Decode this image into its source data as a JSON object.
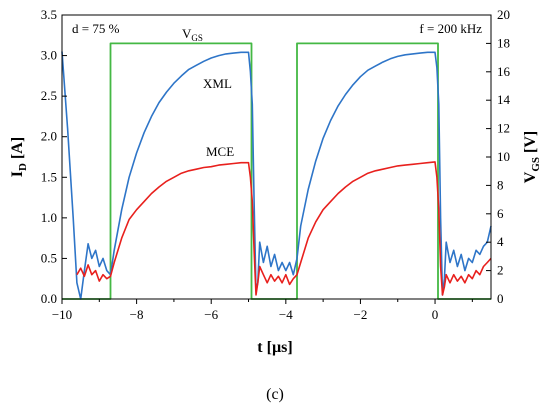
{
  "chart_data": {
    "type": "line",
    "caption": "(c)",
    "xlabel": "t [µs]",
    "ylabel_left_main": "I",
    "ylabel_left_sub": "D",
    "ylabel_left_unit": " [A]",
    "ylabel_right_main": "V",
    "ylabel_right_sub": "GS",
    "ylabel_right_unit": " [V]",
    "xlim": [
      -10,
      1.5
    ],
    "ylim_left": [
      0,
      3.5
    ],
    "ylim_right": [
      0,
      20
    ],
    "x_ticks": [
      -10,
      -8,
      -6,
      -4,
      -2,
      0
    ],
    "x_tick_labels": [
      "−10",
      "−8",
      "−6",
      "−4",
      "−2",
      "0"
    ],
    "y_left_ticks": [
      0,
      0.5,
      1,
      1.5,
      2,
      2.5,
      3,
      3.5
    ],
    "y_left_tick_labels": [
      "0.0",
      "0.5",
      "1.0",
      "1.5",
      "2.0",
      "2.5",
      "3.0",
      "3.5"
    ],
    "y_right_ticks": [
      0,
      2,
      4,
      6,
      8,
      10,
      12,
      14,
      16,
      18,
      20
    ],
    "y_right_tick_labels": [
      "0",
      "2",
      "4",
      "6",
      "8",
      "10",
      "12",
      "14",
      "16",
      "18",
      "20"
    ],
    "grid": false,
    "annotations": {
      "duty": "d = 75 %",
      "freq": "f = 200 kHz",
      "vgs_main": "V",
      "vgs_sub": "GS",
      "xml": "XML",
      "mce": "MCE"
    },
    "colors": {
      "XML": "#2e75c8",
      "MCE": "#e8201d",
      "VGS": "#44b844"
    },
    "series": [
      {
        "name": "XML",
        "axis": "left",
        "x": [
          -10,
          -9.85,
          -9.7,
          -9.6,
          -9.5,
          -9.4,
          -9.3,
          -9.2,
          -9.1,
          -9.0,
          -8.9,
          -8.8,
          -8.7,
          -8.6,
          -8.4,
          -8.2,
          -8.0,
          -7.8,
          -7.6,
          -7.4,
          -7.2,
          -7.0,
          -6.8,
          -6.6,
          -6.4,
          -6.2,
          -6.0,
          -5.8,
          -5.6,
          -5.4,
          -5.2,
          -5.0,
          -4.95,
          -4.9,
          -4.85,
          -4.8,
          -4.75,
          -4.7,
          -4.6,
          -4.5,
          -4.4,
          -4.3,
          -4.2,
          -4.1,
          -4.0,
          -3.9,
          -3.8,
          -3.7,
          -3.6,
          -3.4,
          -3.2,
          -3.0,
          -2.8,
          -2.6,
          -2.4,
          -2.2,
          -2.0,
          -1.8,
          -1.6,
          -1.4,
          -1.2,
          -1.0,
          -0.8,
          -0.6,
          -0.4,
          -0.2,
          0.0,
          0.05,
          0.1,
          0.15,
          0.2,
          0.25,
          0.3,
          0.4,
          0.5,
          0.6,
          0.7,
          0.8,
          0.9,
          1.0,
          1.1,
          1.2,
          1.3,
          1.4,
          1.5
        ],
        "y": [
          3.05,
          2.1,
          1.0,
          0.2,
          0.0,
          0.35,
          0.68,
          0.5,
          0.6,
          0.4,
          0.5,
          0.35,
          0.3,
          0.6,
          1.1,
          1.5,
          1.8,
          2.05,
          2.25,
          2.42,
          2.55,
          2.66,
          2.75,
          2.83,
          2.88,
          2.93,
          2.97,
          3.0,
          3.02,
          3.03,
          3.04,
          3.04,
          2.8,
          2.4,
          1.2,
          0.1,
          0.2,
          0.7,
          0.45,
          0.65,
          0.4,
          0.55,
          0.35,
          0.45,
          0.35,
          0.45,
          0.3,
          0.5,
          0.9,
          1.35,
          1.7,
          1.98,
          2.2,
          2.38,
          2.52,
          2.64,
          2.74,
          2.82,
          2.87,
          2.92,
          2.96,
          2.99,
          3.01,
          3.02,
          3.03,
          3.04,
          3.04,
          2.85,
          2.4,
          1.0,
          0.05,
          0.25,
          0.7,
          0.45,
          0.6,
          0.4,
          0.55,
          0.35,
          0.5,
          0.45,
          0.6,
          0.55,
          0.65,
          0.7,
          0.9
        ]
      },
      {
        "name": "MCE",
        "axis": "left",
        "x": [
          -9.6,
          -9.5,
          -9.4,
          -9.3,
          -9.2,
          -9.1,
          -9.0,
          -8.9,
          -8.8,
          -8.7,
          -8.6,
          -8.4,
          -8.2,
          -8.0,
          -7.8,
          -7.6,
          -7.4,
          -7.2,
          -7.0,
          -6.8,
          -6.6,
          -6.4,
          -6.2,
          -6.0,
          -5.8,
          -5.6,
          -5.4,
          -5.2,
          -5.0,
          -4.95,
          -4.9,
          -4.85,
          -4.8,
          -4.75,
          -4.7,
          -4.6,
          -4.5,
          -4.4,
          -4.3,
          -4.2,
          -4.1,
          -4.0,
          -3.9,
          -3.8,
          -3.7,
          -3.6,
          -3.4,
          -3.2,
          -3.0,
          -2.8,
          -2.6,
          -2.4,
          -2.2,
          -2.0,
          -1.8,
          -1.6,
          -1.4,
          -1.2,
          -1.0,
          -0.8,
          -0.6,
          -0.4,
          -0.2,
          0.0,
          0.05,
          0.1,
          0.15,
          0.2,
          0.25,
          0.3,
          0.4,
          0.5,
          0.6,
          0.7,
          0.8,
          0.9,
          1.0,
          1.1,
          1.2,
          1.3,
          1.4,
          1.5
        ],
        "y": [
          0.3,
          0.38,
          0.28,
          0.42,
          0.3,
          0.35,
          0.22,
          0.3,
          0.25,
          0.28,
          0.45,
          0.75,
          0.98,
          1.1,
          1.2,
          1.3,
          1.38,
          1.45,
          1.5,
          1.55,
          1.58,
          1.6,
          1.62,
          1.63,
          1.65,
          1.66,
          1.67,
          1.68,
          1.68,
          1.5,
          1.2,
          0.6,
          0.05,
          0.2,
          0.4,
          0.3,
          0.2,
          0.3,
          0.22,
          0.28,
          0.2,
          0.3,
          0.18,
          0.25,
          0.3,
          0.45,
          0.75,
          0.95,
          1.1,
          1.2,
          1.3,
          1.38,
          1.45,
          1.5,
          1.55,
          1.58,
          1.6,
          1.62,
          1.64,
          1.65,
          1.66,
          1.67,
          1.68,
          1.69,
          1.5,
          1.1,
          0.4,
          0.05,
          0.15,
          0.3,
          0.2,
          0.3,
          0.22,
          0.28,
          0.2,
          0.3,
          0.25,
          0.35,
          0.3,
          0.4,
          0.45,
          0.5
        ]
      },
      {
        "name": "VGS",
        "axis": "right",
        "x": [
          -10,
          -8.7,
          -8.7,
          -4.92,
          -4.92,
          -3.7,
          -3.7,
          0.08,
          0.08,
          1.5
        ],
        "y": [
          0,
          0,
          18,
          18,
          0,
          0,
          18,
          18,
          0,
          0
        ]
      }
    ]
  }
}
